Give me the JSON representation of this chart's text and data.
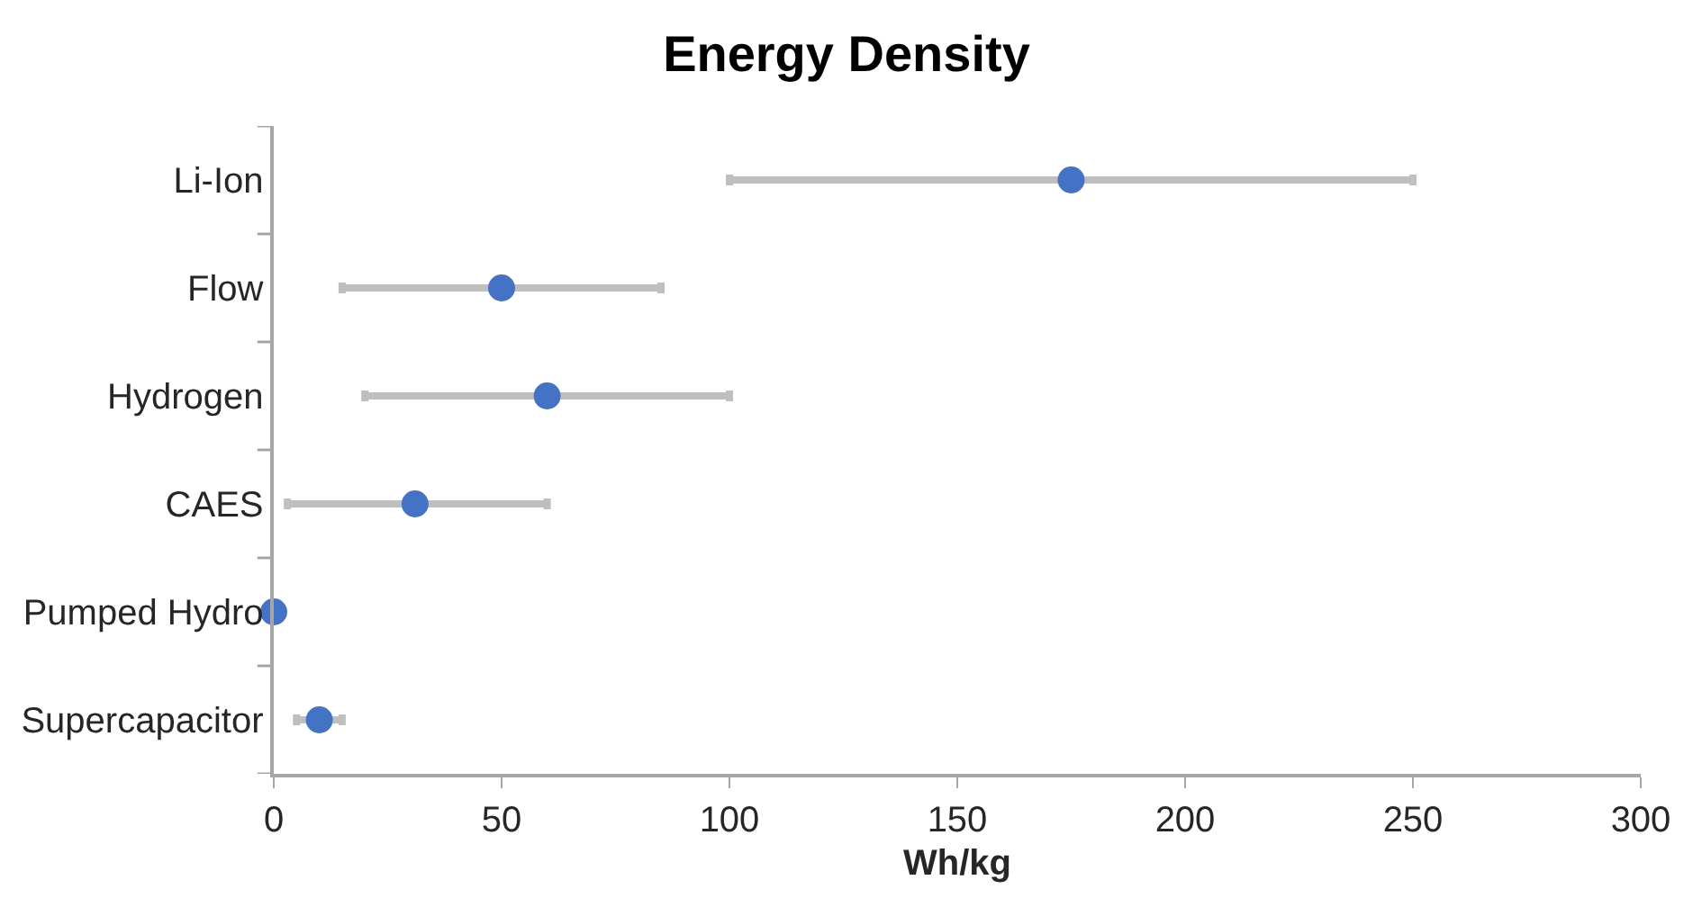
{
  "chart_data": {
    "type": "scatter",
    "orientation": "horizontal",
    "title": "Energy Density",
    "xlabel": "Wh/kg",
    "categories": [
      "Li-Ion",
      "Flow",
      "Hydrogen",
      "CAES",
      "Pumped Hydro",
      "Supercapacitor"
    ],
    "values": [
      175,
      50,
      60,
      31,
      0,
      10
    ],
    "errors": [
      [
        100,
        250
      ],
      [
        15,
        85
      ],
      [
        20,
        100
      ],
      [
        3,
        60
      ],
      null,
      [
        5,
        15
      ]
    ],
    "color": "#4472c4",
    "marker": "circle",
    "xlim": [
      0,
      300
    ],
    "xticks": [
      0,
      50,
      100,
      150,
      200,
      250,
      300
    ],
    "legend": false
  }
}
